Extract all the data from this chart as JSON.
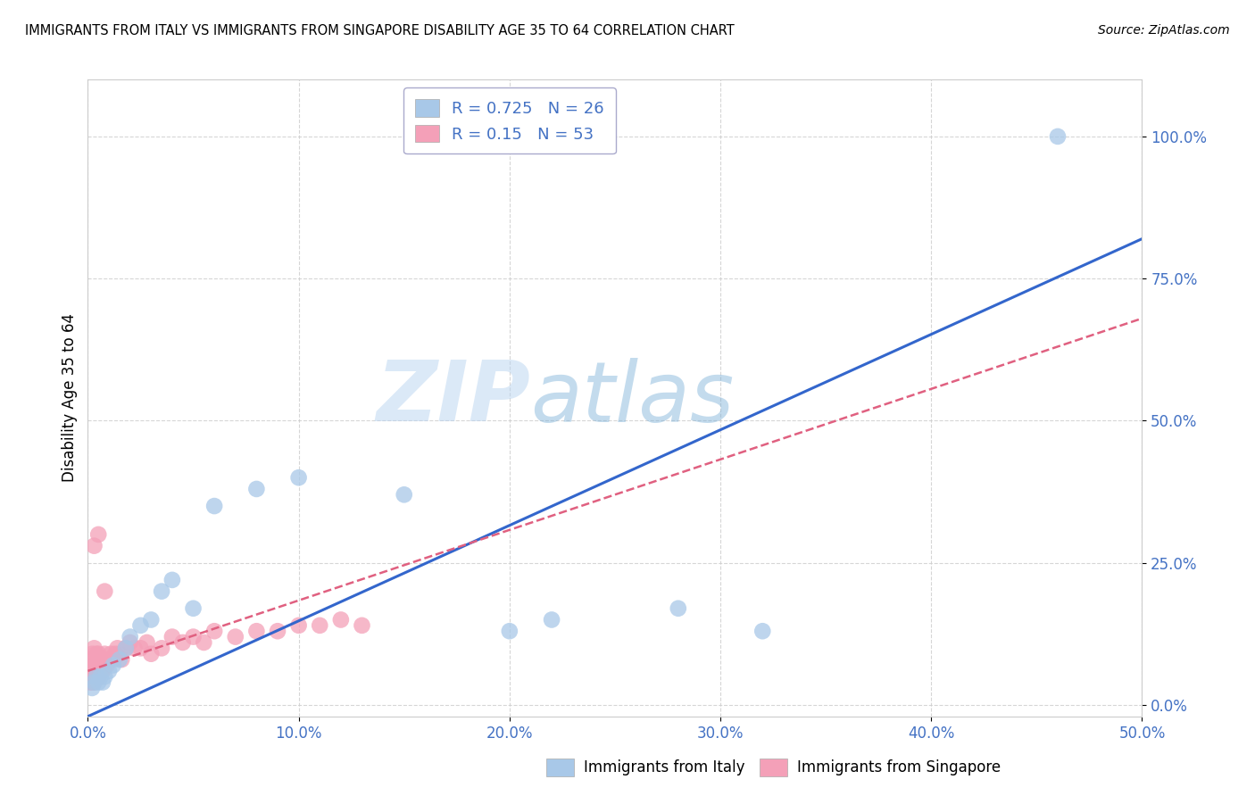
{
  "title": "IMMIGRANTS FROM ITALY VS IMMIGRANTS FROM SINGAPORE DISABILITY AGE 35 TO 64 CORRELATION CHART",
  "source": "Source: ZipAtlas.com",
  "tick_color": "#4472c4",
  "ylabel": "Disability Age 35 to 64",
  "xlim": [
    0,
    0.5
  ],
  "ylim": [
    -0.02,
    1.1
  ],
  "xtick_labels": [
    "0.0%",
    "10.0%",
    "20.0%",
    "30.0%",
    "40.0%",
    "50.0%"
  ],
  "xtick_values": [
    0,
    0.1,
    0.2,
    0.3,
    0.4,
    0.5
  ],
  "ytick_labels": [
    "0.0%",
    "25.0%",
    "50.0%",
    "75.0%",
    "100.0%"
  ],
  "ytick_values": [
    0,
    0.25,
    0.5,
    0.75,
    1.0
  ],
  "italy_color": "#a8c8e8",
  "singapore_color": "#f4a0b8",
  "italy_line_color": "#3366cc",
  "singapore_line_color": "#e06080",
  "italy_R": 0.725,
  "italy_N": 26,
  "singapore_R": 0.15,
  "singapore_N": 53,
  "watermark_zip": "ZIP",
  "watermark_atlas": "atlas",
  "legend_italy_label": "Immigrants from Italy",
  "legend_singapore_label": "Immigrants from Singapore",
  "italy_x": [
    0.002,
    0.003,
    0.004,
    0.005,
    0.006,
    0.007,
    0.008,
    0.01,
    0.012,
    0.015,
    0.018,
    0.02,
    0.025,
    0.03,
    0.035,
    0.04,
    0.05,
    0.06,
    0.08,
    0.1,
    0.15,
    0.2,
    0.22,
    0.28,
    0.32,
    0.46
  ],
  "italy_y": [
    0.03,
    0.04,
    0.05,
    0.04,
    0.05,
    0.04,
    0.05,
    0.06,
    0.07,
    0.08,
    0.1,
    0.12,
    0.14,
    0.15,
    0.2,
    0.22,
    0.17,
    0.35,
    0.38,
    0.4,
    0.37,
    0.13,
    0.15,
    0.17,
    0.13,
    1.0
  ],
  "singapore_x": [
    0.001,
    0.001,
    0.001,
    0.002,
    0.002,
    0.002,
    0.002,
    0.003,
    0.003,
    0.003,
    0.003,
    0.004,
    0.004,
    0.004,
    0.005,
    0.005,
    0.005,
    0.006,
    0.006,
    0.007,
    0.007,
    0.008,
    0.008,
    0.009,
    0.01,
    0.011,
    0.012,
    0.013,
    0.014,
    0.015,
    0.016,
    0.018,
    0.02,
    0.022,
    0.025,
    0.028,
    0.03,
    0.035,
    0.04,
    0.045,
    0.05,
    0.055,
    0.06,
    0.07,
    0.08,
    0.09,
    0.1,
    0.11,
    0.12,
    0.13,
    0.003,
    0.005,
    0.008
  ],
  "singapore_y": [
    0.04,
    0.06,
    0.08,
    0.04,
    0.06,
    0.07,
    0.09,
    0.04,
    0.06,
    0.07,
    0.1,
    0.05,
    0.07,
    0.09,
    0.05,
    0.07,
    0.09,
    0.06,
    0.08,
    0.06,
    0.08,
    0.07,
    0.09,
    0.07,
    0.08,
    0.09,
    0.08,
    0.09,
    0.1,
    0.09,
    0.08,
    0.1,
    0.11,
    0.1,
    0.1,
    0.11,
    0.09,
    0.1,
    0.12,
    0.11,
    0.12,
    0.11,
    0.13,
    0.12,
    0.13,
    0.13,
    0.14,
    0.14,
    0.15,
    0.14,
    0.28,
    0.3,
    0.2
  ],
  "italy_line_x": [
    0,
    0.5
  ],
  "italy_line_y": [
    -0.02,
    0.82
  ],
  "singapore_line_x": [
    0,
    0.5
  ],
  "singapore_line_y": [
    0.06,
    0.68
  ]
}
